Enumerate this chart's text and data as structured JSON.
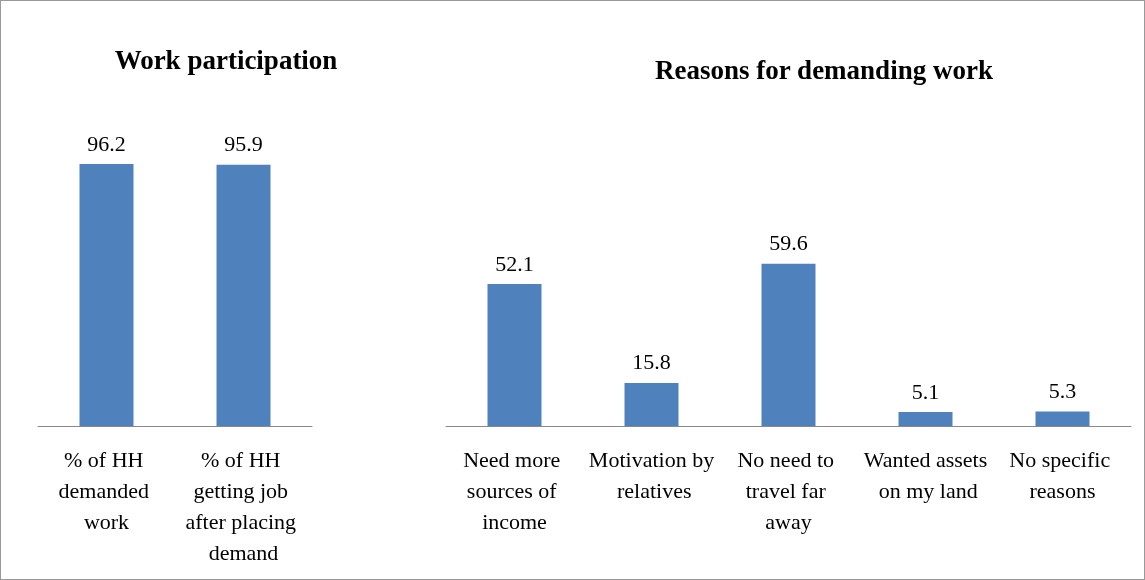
{
  "chart_data": [
    {
      "type": "bar",
      "title": "Work participation",
      "categories": [
        "% of HH demanded work",
        "% of HH getting job after placing demand"
      ],
      "values": [
        96.2,
        95.9
      ],
      "color": "#4f81bd",
      "data_labels": true
    },
    {
      "type": "bar",
      "title": "Reasons for demanding work",
      "categories": [
        "Need more sources of income",
        "Motivation by relatives",
        "No need to travel far away",
        "Wanted assets on my land",
        "No specific reasons"
      ],
      "values": [
        52.1,
        15.8,
        59.6,
        5.1,
        5.3
      ],
      "color": "#4f81bd",
      "data_labels": true
    }
  ]
}
